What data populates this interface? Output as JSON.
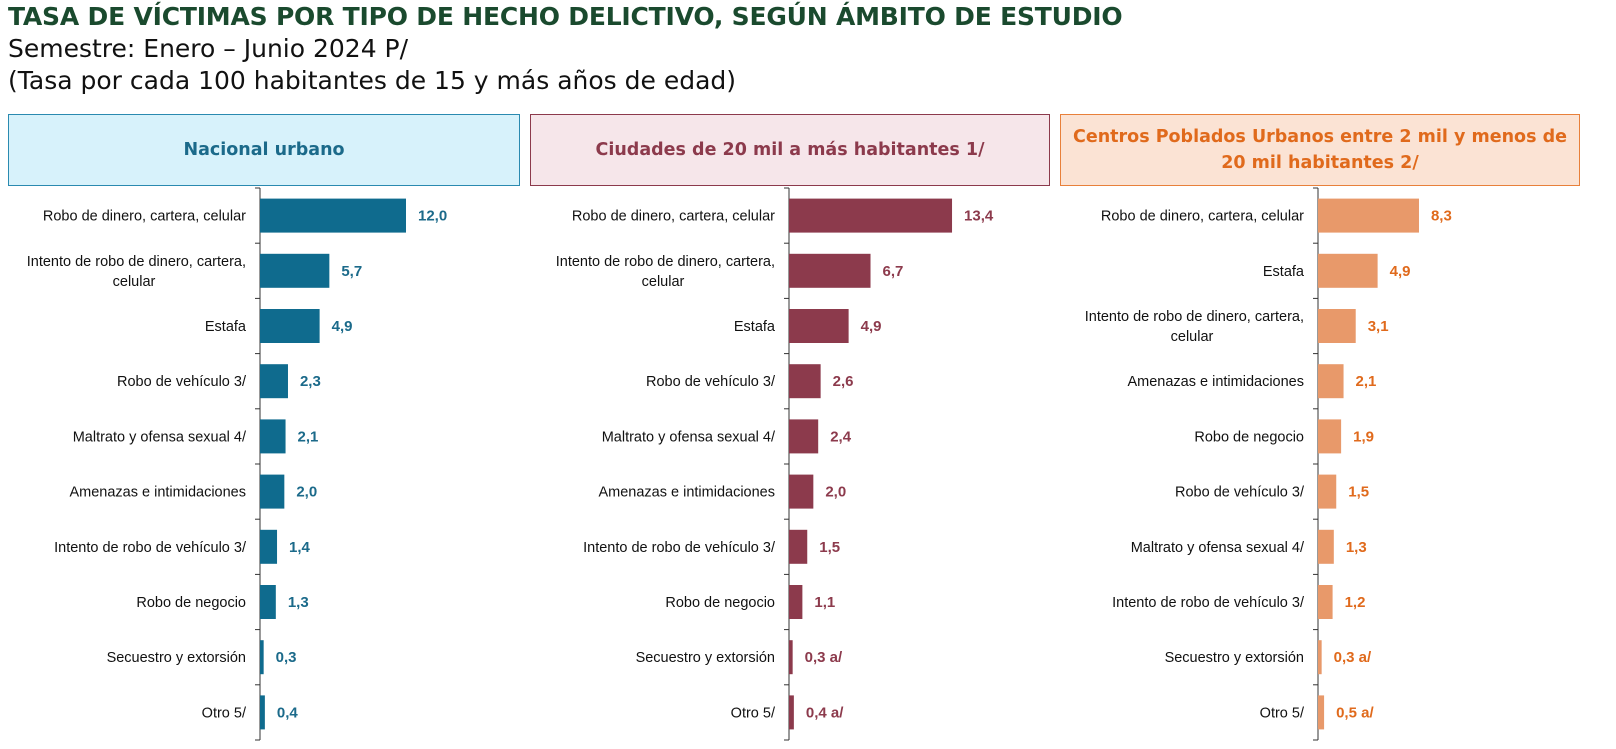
{
  "title": "TASA DE VÍCTIMAS POR TIPO DE HECHO DELICTIVO, SEGÚN ÁMBITO DE ESTUDIO",
  "subtitle_line1": "Semestre: Enero – Junio 2024 P/",
  "subtitle_line2": "(Tasa por cada 100 habitantes de 15 y más años de edad)",
  "chart_data": [
    {
      "type": "bar",
      "orientation": "horizontal",
      "title": "Nacional urbano",
      "color": "#0f6b8e",
      "label_color": "#1b6a8a",
      "header_bg": "#d7f2fb",
      "xlim": [
        0,
        14
      ],
      "categories": [
        [
          "Robo de dinero, cartera, celular"
        ],
        [
          "Intento de robo de dinero, cartera,",
          "celular"
        ],
        [
          "Estafa"
        ],
        [
          "Robo  de vehículo 3/"
        ],
        [
          "Maltrato y ofensa sexual 4/"
        ],
        [
          "Amenazas e intimidaciones"
        ],
        [
          "Intento de robo de vehículo 3/"
        ],
        [
          "Robo de negocio"
        ],
        [
          "Secuestro y extorsión"
        ],
        [
          "Otro 5/"
        ]
      ],
      "values": [
        12.0,
        5.7,
        4.9,
        2.3,
        2.1,
        2.0,
        1.4,
        1.3,
        0.3,
        0.4
      ],
      "value_labels": [
        "12,0",
        "5,7",
        "4,9",
        "2,3",
        "2,1",
        "2,0",
        "1,4",
        "1,3",
        "0,3",
        "0,4"
      ]
    },
    {
      "type": "bar",
      "orientation": "horizontal",
      "title": "Ciudades de 20 mil a más habitantes 1/",
      "color": "#8c3a4c",
      "label_color": "#8c3a4c",
      "header_bg": "#f6e6ea",
      "xlim": [
        0,
        14
      ],
      "categories": [
        [
          "Robo de dinero, cartera, celular"
        ],
        [
          "Intento de robo de dinero, cartera,",
          "celular"
        ],
        [
          "Estafa"
        ],
        [
          "Robo  de vehículo 3/"
        ],
        [
          "Maltrato y ofensa sexual 4/"
        ],
        [
          "Amenazas e intimidaciones"
        ],
        [
          "Intento de robo de vehículo 3/"
        ],
        [
          "Robo de negocio"
        ],
        [
          "Secuestro y extorsión"
        ],
        [
          "Otro 5/"
        ]
      ],
      "values": [
        13.4,
        6.7,
        4.9,
        2.6,
        2.4,
        2.0,
        1.5,
        1.1,
        0.3,
        0.4
      ],
      "value_labels": [
        "13,4",
        "6,7",
        "4,9",
        "2,6",
        "2,4",
        "2,0",
        "1,5",
        "1,1",
        "0,3 a/",
        "0,4 a/"
      ]
    },
    {
      "type": "bar",
      "orientation": "horizontal",
      "title": "Centros Poblados Urbanos entre 2 mil y menos de 20 mil habitantes 2/",
      "color": "#e8996a",
      "label_color": "#e06a1c",
      "header_bg": "#fbe3d4",
      "xlim": [
        0,
        14
      ],
      "categories": [
        [
          "Robo de dinero, cartera, celular"
        ],
        [
          "Estafa"
        ],
        [
          "Intento de robo de dinero, cartera,",
          "celular"
        ],
        [
          "Amenazas e intimidaciones"
        ],
        [
          "Robo de negocio"
        ],
        [
          "Robo  de vehículo 3/"
        ],
        [
          "Maltrato y ofensa sexual 4/"
        ],
        [
          "Intento de robo de vehículo 3/"
        ],
        [
          "Secuestro y extorsión"
        ],
        [
          "Otro 5/"
        ]
      ],
      "values": [
        8.3,
        4.9,
        3.1,
        2.1,
        1.9,
        1.5,
        1.3,
        1.2,
        0.3,
        0.5
      ],
      "value_labels": [
        "8,3",
        "4,9",
        "3,1",
        "2,1",
        "1,9",
        "1,5",
        "1,3",
        "1,2",
        "0,3 a/",
        "0,5 a/"
      ]
    }
  ]
}
